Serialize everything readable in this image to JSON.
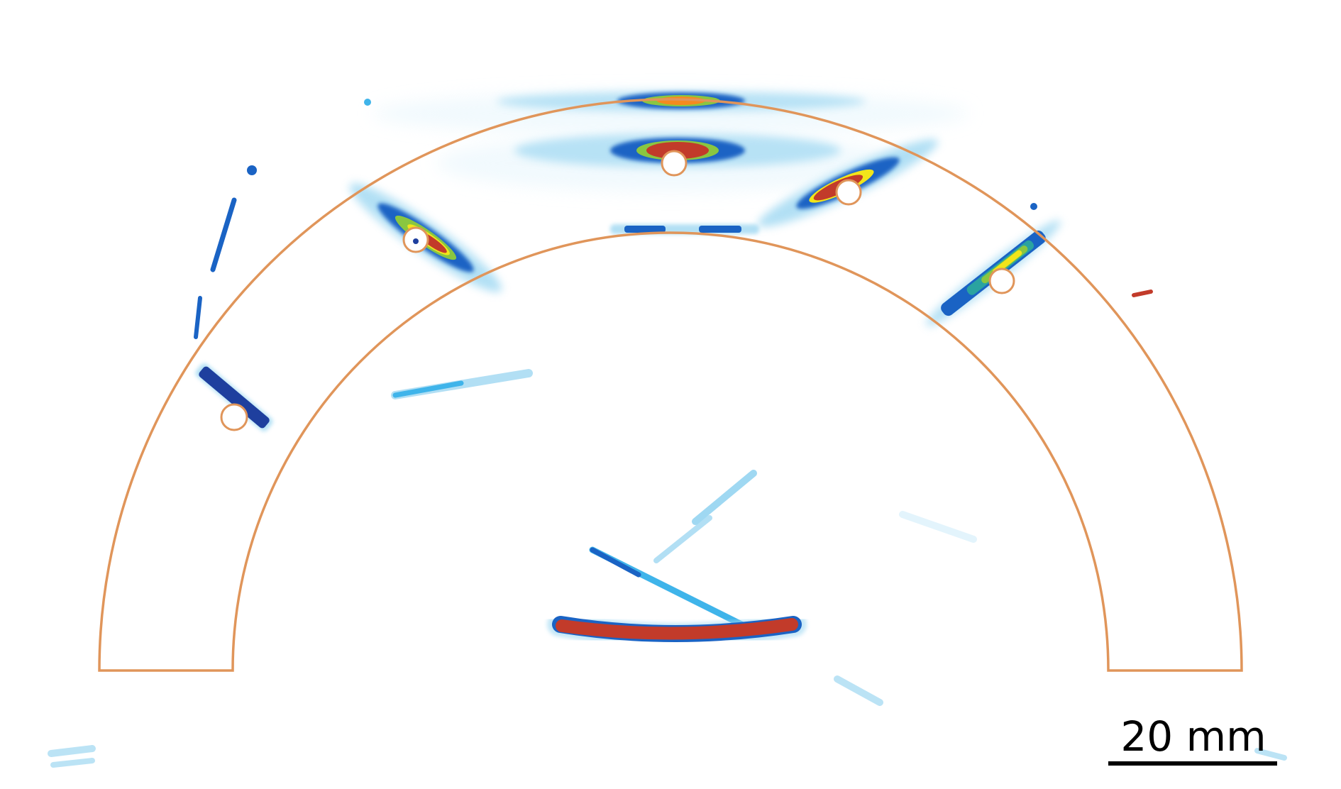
{
  "scale_bar": {
    "label": "20 mm"
  },
  "colors": {
    "outline": "#e0955a",
    "colormap": [
      "#e3f4fc",
      "#9fd8f2",
      "#3fb4ea",
      "#1a63c4",
      "#1e3f9e",
      "#2aa3a0",
      "#8ac640",
      "#f2e51a",
      "#f58a1f",
      "#c23b2a"
    ],
    "scale_bar": "#000000"
  },
  "markers": {
    "count": 6,
    "type": "hollow-circle"
  }
}
